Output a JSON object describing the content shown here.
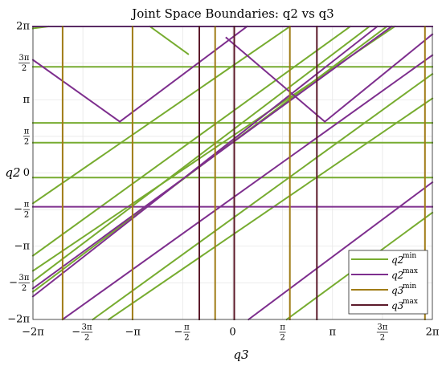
{
  "chart_data": {
    "type": "line",
    "title": "Joint Space Boundaries: q2 vs q3",
    "xlabel": "q3",
    "ylabel": "q2",
    "xlim": [
      -6.2832,
      6.2832
    ],
    "ylim": [
      -6.2832,
      6.2832
    ],
    "grid": true,
    "legend_position": "bottom-right",
    "xticks": [
      {
        "value": -6.2832,
        "label": "−2π"
      },
      {
        "value": -4.7124,
        "label": "−3π/2"
      },
      {
        "value": -3.1416,
        "label": "−π"
      },
      {
        "value": -1.5708,
        "label": "−π/2"
      },
      {
        "value": 0,
        "label": "0"
      },
      {
        "value": 1.5708,
        "label": "π/2"
      },
      {
        "value": 3.1416,
        "label": "π"
      },
      {
        "value": 4.7124,
        "label": "3π/2"
      },
      {
        "value": 6.2832,
        "label": "2π"
      }
    ],
    "yticks": [
      {
        "value": -6.2832,
        "label": "−2π"
      },
      {
        "value": -4.7124,
        "label": "−3π/2"
      },
      {
        "value": -3.1416,
        "label": "−π"
      },
      {
        "value": -1.5708,
        "label": "−π/2"
      },
      {
        "value": 0,
        "label": "0"
      },
      {
        "value": 1.5708,
        "label": "π/2"
      },
      {
        "value": 3.1416,
        "label": "π"
      },
      {
        "value": 4.7124,
        "label": "3π/2"
      },
      {
        "value": 6.2832,
        "label": "2π"
      }
    ],
    "series": [
      {
        "name": "q2 min",
        "color": "#77ac30",
        "segments": [
          [
            [
              -6.2832,
              6.2
            ],
            [
              -5.8,
              6.2832
            ]
          ],
          [
            [
              -2.6,
              6.2832
            ],
            [
              -1.4,
              5.1
            ]
          ],
          [
            [
              -6.2832,
              4.55
            ],
            [
              6.2832,
              4.55
            ]
          ],
          [
            [
              -6.2832,
              2.15
            ],
            [
              6.2832,
              2.15
            ]
          ],
          [
            [
              -6.2832,
              1.3
            ],
            [
              6.2832,
              1.3
            ]
          ],
          [
            [
              -6.2832,
              -0.2
            ],
            [
              6.2832,
              -0.2
            ]
          ],
          [
            [
              -6.2832,
              -1.3
            ],
            [
              1.8,
              6.2832
            ]
          ],
          [
            [
              -6.2832,
              -4.65
            ],
            [
              4.3,
              6.2832
            ]
          ],
          [
            [
              -6.2832,
              -5.1
            ],
            [
              4.85,
              6.2832
            ]
          ],
          [
            [
              -4.4,
              -6.2832
            ],
            [
              6.2832,
              4.25
            ]
          ],
          [
            [
              -3.9,
              -6.2832
            ],
            [
              6.2832,
              3.2
            ]
          ],
          [
            [
              -6.2832,
              -3.55
            ],
            [
              3.7,
              6.2832
            ]
          ],
          [
            [
              1.7,
              -6.2832
            ],
            [
              6.2832,
              -1.7
            ]
          ],
          [
            [
              -6.2832,
              -4.2
            ],
            [
              5.1,
              6.2832
            ]
          ]
        ]
      },
      {
        "name": "q2 max",
        "color": "#7e2f8e",
        "segments": [
          [
            [
              -6.2832,
              6.2832
            ],
            [
              6.2832,
              6.2832
            ]
          ],
          [
            [
              -6.2832,
              4.85
            ],
            [
              -3.55,
              2.2
            ]
          ],
          [
            [
              -3.55,
              2.2
            ],
            [
              0.45,
              6.2832
            ]
          ],
          [
            [
              -0.2,
              5.8
            ],
            [
              2.9,
              2.2
            ]
          ],
          [
            [
              2.9,
              2.2
            ],
            [
              6.2832,
              5.95
            ]
          ],
          [
            [
              -6.2832,
              -1.45
            ],
            [
              6.2832,
              -1.45
            ]
          ],
          [
            [
              -6.2832,
              -4.95
            ],
            [
              5.0,
              6.2832
            ]
          ],
          [
            [
              -6.2832,
              -5.3
            ],
            [
              4.55,
              6.2832
            ]
          ],
          [
            [
              -5.35,
              -6.2832
            ],
            [
              6.2832,
              5.05
            ]
          ],
          [
            [
              0.5,
              -6.2832
            ],
            [
              6.2832,
              -0.4
            ]
          ]
        ]
      },
      {
        "name": "q3 min",
        "color": "#a07c16",
        "segments": [
          [
            [
              -5.35,
              -6.2832
            ],
            [
              -5.35,
              6.2832
            ]
          ],
          [
            [
              -3.15,
              -6.2832
            ],
            [
              -3.15,
              6.2832
            ]
          ],
          [
            [
              -0.55,
              -6.2832
            ],
            [
              -0.55,
              6.2832
            ]
          ],
          [
            [
              1.8,
              -6.2832
            ],
            [
              1.8,
              6.2832
            ]
          ],
          [
            [
              6.05,
              -6.2832
            ],
            [
              6.05,
              6.2832
            ]
          ]
        ]
      },
      {
        "name": "q3 max",
        "color": "#5c1a2a",
        "segments": [
          [
            [
              -1.05,
              -6.2832
            ],
            [
              -1.05,
              6.2832
            ]
          ],
          [
            [
              0.05,
              -6.2832
            ],
            [
              0.05,
              6.2832
            ]
          ],
          [
            [
              2.65,
              -6.2832
            ],
            [
              2.65,
              6.2832
            ]
          ]
        ]
      }
    ]
  }
}
